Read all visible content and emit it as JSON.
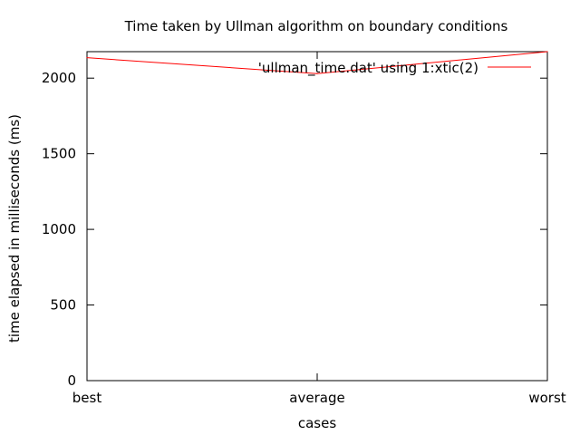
{
  "chart_data": {
    "type": "line",
    "title": "Time taken by Ullman algorithm on boundary conditions",
    "xlabel": "cases",
    "ylabel": "time elapsed in milliseconds (ms)",
    "categories": [
      "best",
      "average",
      "worst"
    ],
    "series": [
      {
        "name": "'ullman_time.dat' using 1:xtic(2)",
        "values": [
          2135,
          2030,
          2175
        ],
        "color": "#ff0000"
      }
    ],
    "ylim": [
      0,
      2175
    ],
    "yticks": [
      0,
      500,
      1000,
      1500,
      2000
    ],
    "grid": false,
    "legend_position": "top-right"
  }
}
